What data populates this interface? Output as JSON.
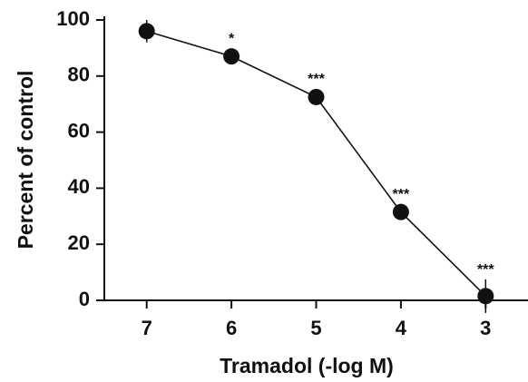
{
  "chart_data": {
    "type": "line",
    "x_label": "Tramadol (-log M)",
    "y_label": "Percent of control",
    "x": [
      7,
      6,
      5,
      4,
      3
    ],
    "series": [
      {
        "color": "#111111",
        "values": [
          96,
          87,
          72.5,
          31.5,
          1.5
        ],
        "errors": [
          4,
          1.5,
          1,
          1.5,
          6
        ]
      }
    ],
    "annotations": [
      {
        "x": 6,
        "text": "*"
      },
      {
        "x": 5,
        "text": "***"
      },
      {
        "x": 4,
        "text": "***"
      },
      {
        "x": 3,
        "text": "***"
      }
    ],
    "xlim": [
      7.5,
      2.5
    ],
    "xticks": [
      7,
      6,
      5,
      4,
      3
    ],
    "ylim": [
      0,
      100
    ],
    "yticks": [
      0,
      20,
      40,
      60,
      80,
      100
    ]
  }
}
